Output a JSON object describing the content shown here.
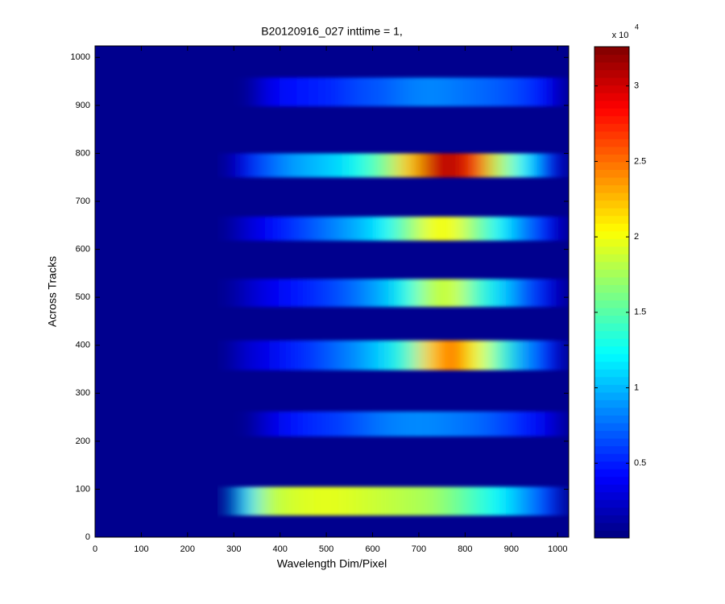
{
  "chart_data": {
    "type": "heatmap",
    "title": "B20120916_027 inttime = 1,",
    "xlabel": "Wavelength Dim/Pixel",
    "ylabel": "Across Tracks",
    "xlim": [
      0,
      1024
    ],
    "ylim": [
      0,
      1024
    ],
    "xticks": [
      0,
      100,
      200,
      300,
      400,
      500,
      600,
      700,
      800,
      900,
      1000
    ],
    "yticks": [
      0,
      100,
      200,
      300,
      400,
      500,
      600,
      700,
      800,
      900,
      1000
    ],
    "colormap": "jet",
    "clim": [
      0.005,
      3.26
    ],
    "cticks": [
      0.5,
      1,
      1.5,
      2,
      2.5,
      3
    ],
    "colorbar_multiplier": {
      "base": "x 10",
      "exponent": "4"
    },
    "background_value": 0.05,
    "x_bins": [
      300,
      350,
      400,
      450,
      500,
      550,
      600,
      650,
      700,
      750,
      800,
      850,
      900,
      950,
      1000
    ],
    "bands": [
      {
        "y_range": [
          45,
          105
        ],
        "values": [
          1.1,
          1.8,
          1.9,
          1.95,
          1.95,
          1.9,
          1.85,
          1.8,
          1.75,
          1.6,
          1.4,
          1.2,
          0.9,
          0.6
        ]
      },
      {
        "y_range": [
          210,
          262
        ],
        "values": [
          null,
          0.3,
          0.45,
          0.55,
          0.6,
          0.7,
          0.8,
          0.85,
          0.85,
          0.8,
          0.75,
          0.65,
          0.5,
          0.35
        ]
      },
      {
        "y_range": [
          348,
          410
        ],
        "values": [
          0.25,
          0.35,
          0.5,
          0.6,
          0.75,
          0.9,
          1.1,
          1.4,
          2.2,
          2.6,
          2.0,
          1.4,
          0.9,
          0.5
        ]
      },
      {
        "y_range": [
          480,
          538
        ],
        "values": [
          0.2,
          0.35,
          0.45,
          0.55,
          0.65,
          0.8,
          1.0,
          1.3,
          1.8,
          1.9,
          1.4,
          1.1,
          0.7,
          0.35
        ]
      },
      {
        "y_range": [
          618,
          668
        ],
        "values": [
          0.25,
          0.4,
          0.55,
          0.7,
          0.85,
          1.0,
          1.2,
          1.6,
          2.0,
          2.0,
          1.6,
          1.2,
          0.8,
          0.4
        ]
      },
      {
        "y_range": [
          750,
          800
        ],
        "values": [
          0.35,
          0.7,
          0.9,
          1.0,
          1.1,
          1.3,
          1.6,
          2.2,
          3.0,
          3.1,
          2.7,
          1.8,
          1.2,
          0.5
        ]
      },
      {
        "y_range": [
          898,
          958
        ],
        "values": [
          null,
          0.35,
          0.45,
          0.5,
          0.55,
          0.65,
          0.7,
          0.8,
          0.85,
          0.8,
          0.75,
          0.7,
          0.6,
          0.4
        ]
      }
    ]
  }
}
